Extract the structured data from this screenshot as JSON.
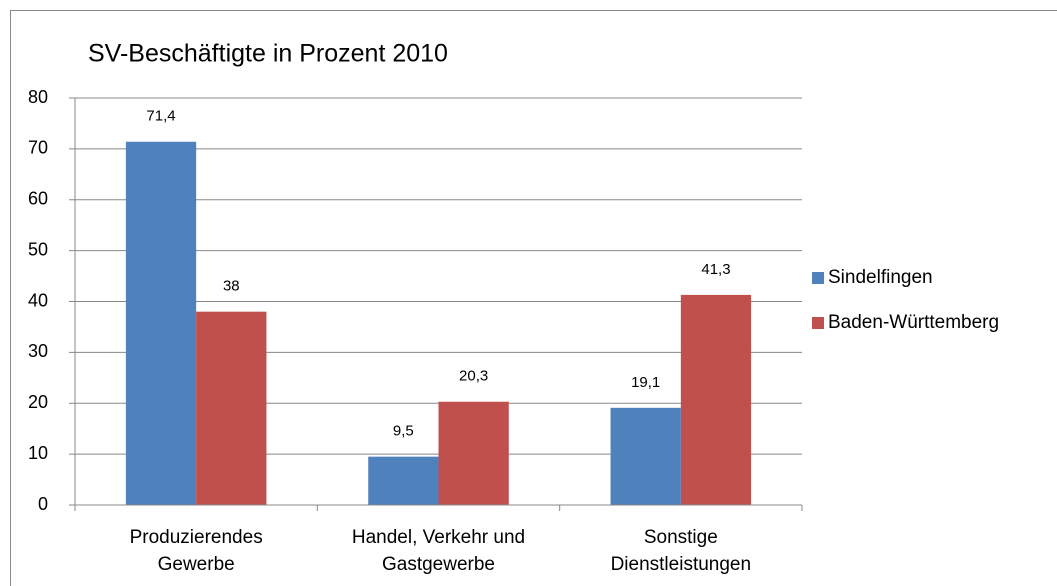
{
  "chart_data": {
    "type": "bar",
    "title": "SV-Beschäftigte in Prozent 2010",
    "categories": [
      "Produzierendes Gewerbe",
      "Handel, Verkehr und Gastgewerbe",
      "Sonstige Dienstleistungen"
    ],
    "series": [
      {
        "name": "Sindelfingen",
        "color": "#4f81bd",
        "values": [
          71.4,
          9.5,
          19.1
        ],
        "value_labels": [
          "71,4",
          "9,5",
          "19,1"
        ]
      },
      {
        "name": "Baden-Württemberg",
        "color": "#c0504d",
        "values": [
          38,
          20.3,
          41.3
        ],
        "value_labels": [
          "38",
          "20,3",
          "41,3"
        ]
      }
    ],
    "ylim": [
      0,
      80
    ],
    "yticks": [
      0,
      10,
      20,
      30,
      40,
      50,
      60,
      70,
      80
    ],
    "grid": true,
    "legend": "right"
  }
}
